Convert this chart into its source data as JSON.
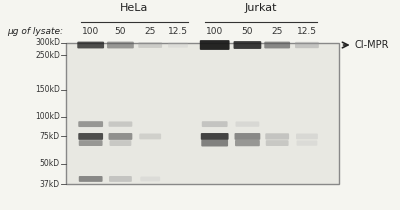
{
  "title": "",
  "bg_color": "#f5f5f0",
  "blot_bg": "#e8e8e2",
  "box_bg": "#dcdcd5",
  "hela_label": "HeLa",
  "jurkat_label": "Jurkat",
  "ug_label": "μg of lysate:",
  "hela_lanes": [
    "100",
    "50",
    "25",
    "12.5"
  ],
  "jurkat_lanes": [
    "100",
    "50",
    "25",
    "12.5"
  ],
  "mw_labels": [
    "300kD",
    "250kD",
    "150kD",
    "100kD",
    "75kD",
    "50kD",
    "37kD"
  ],
  "annotation": "←CI-MPR",
  "band_color_dark": "#1a1a1a",
  "band_color_mid": "#555555",
  "band_color_light": "#999999",
  "band_color_vlight": "#bbbbbb",
  "figure_width": 4.0,
  "figure_height": 2.1,
  "dpi": 100
}
